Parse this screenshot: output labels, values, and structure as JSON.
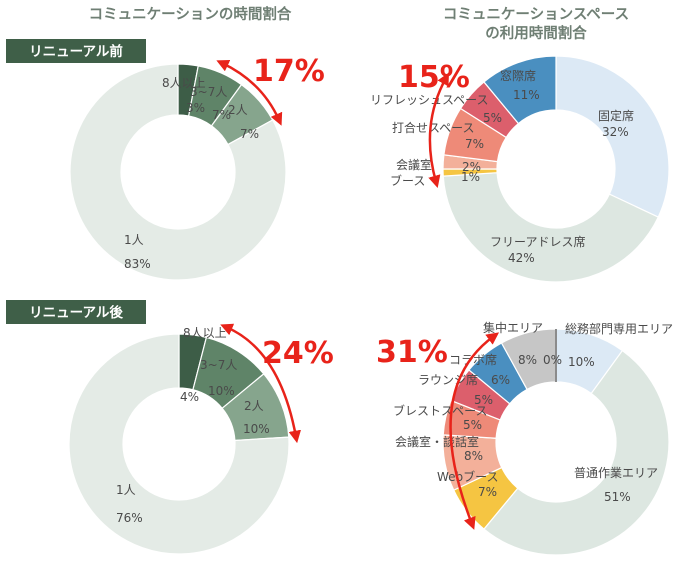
{
  "titles": {
    "left": "コミュニケーションの時間割合",
    "right_line1": "コミュニケーションスペース",
    "right_line2": "の利用時間割合"
  },
  "tags": {
    "before": "リニューアル前",
    "after": "リニューアル後"
  },
  "colors": {
    "arrow": "#e8231a",
    "tag_bg": "#3f5f48"
  },
  "chart_data": [
    {
      "id": "before-communication",
      "type": "pie",
      "title": "コミュニケーションの時間割合",
      "subtitle": "リニューアル前",
      "highlight": "17%",
      "slices": [
        {
          "label": "8人以上",
          "value": 3,
          "pct": "3%",
          "color": "#3d5d47"
        },
        {
          "label": "3~7人",
          "value": 7,
          "pct": "7%",
          "color": "#5f8468"
        },
        {
          "label": "2人",
          "value": 7,
          "pct": "7%",
          "color": "#86a58d"
        },
        {
          "label": "1人",
          "value": 83,
          "pct": "83%",
          "color": "#e4ebe6"
        }
      ]
    },
    {
      "id": "before-space",
      "type": "pie",
      "title": "コミュニケーションスペースの利用時間割合",
      "subtitle": "リニューアル前",
      "highlight": "15%",
      "slices": [
        {
          "label": "固定席",
          "value": 32,
          "pct": "32%",
          "color": "#dce9f5"
        },
        {
          "label": "フリーアドレス席",
          "value": 42,
          "pct": "42%",
          "color": "#dde7e1"
        },
        {
          "label": "ブース",
          "value": 1,
          "pct": "1%",
          "color": "#f5c542"
        },
        {
          "label": "会議室",
          "value": 2,
          "pct": "2%",
          "color": "#f3b09a"
        },
        {
          "label": "打合せスペース",
          "value": 7,
          "pct": "7%",
          "color": "#ee8a78"
        },
        {
          "label": "リフレッシュスペース",
          "value": 5,
          "pct": "5%",
          "color": "#dc5f6c"
        },
        {
          "label": "窓際席",
          "value": 11,
          "pct": "11%",
          "color": "#4a8fc0"
        }
      ]
    },
    {
      "id": "after-communication",
      "type": "pie",
      "title": "コミュニケーションの時間割合",
      "subtitle": "リニューアル後",
      "highlight": "24%",
      "slices": [
        {
          "label": "8人以上",
          "value": 4,
          "pct": "4%",
          "color": "#3d5d47"
        },
        {
          "label": "3~7人",
          "value": 10,
          "pct": "10%",
          "color": "#5f8468"
        },
        {
          "label": "2人",
          "value": 10,
          "pct": "10%",
          "color": "#86a58d"
        },
        {
          "label": "1人",
          "value": 76,
          "pct": "76%",
          "color": "#e4ebe6"
        }
      ]
    },
    {
      "id": "after-space",
      "type": "pie",
      "title": "コミュニケーションスペースの利用時間割合",
      "subtitle": "リニューアル後",
      "highlight": "31%",
      "slices": [
        {
          "label": "総務部門専用エリア",
          "value": 10,
          "pct": "10%",
          "color": "#dce9f5"
        },
        {
          "label": "普通作業エリア",
          "value": 51,
          "pct": "51%",
          "color": "#dde7e1"
        },
        {
          "label": "Webブース",
          "value": 7,
          "pct": "7%",
          "color": "#f5c542"
        },
        {
          "label": "会議室・談話室",
          "value": 8,
          "pct": "8%",
          "color": "#f3b09a"
        },
        {
          "label": "ブレストスペース",
          "value": 5,
          "pct": "5%",
          "color": "#ee8a78"
        },
        {
          "label": "ラウンジ席",
          "value": 5,
          "pct": "5%",
          "color": "#dc5f6c"
        },
        {
          "label": "コラボ席",
          "value": 6,
          "pct": "6%",
          "color": "#4a8fc0"
        },
        {
          "label": "集中エリア",
          "value": 8,
          "pct": "8%",
          "color": "#c6c6c6"
        },
        {
          "label": "",
          "value": 0,
          "pct": "0%",
          "color": "#8b8b8b"
        }
      ]
    }
  ]
}
